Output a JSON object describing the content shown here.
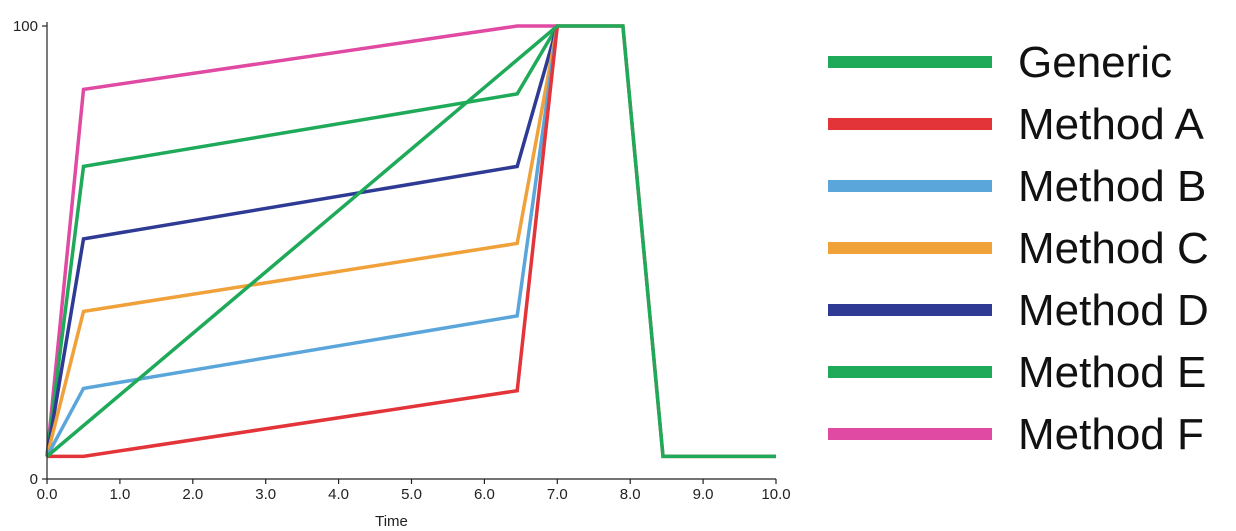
{
  "chart_data": {
    "type": "line",
    "xlabel": "Time",
    "ylabel": "",
    "xlim": [
      0,
      10
    ],
    "ylim": [
      0,
      100
    ],
    "x_ticks": [
      "0.0",
      "1.0",
      "2.0",
      "3.0",
      "4.0",
      "5.0",
      "6.0",
      "7.0",
      "8.0",
      "9.0",
      "10.0"
    ],
    "y_ticks": [
      "0",
      "100"
    ],
    "grid": false,
    "legend_position": "right",
    "series": [
      {
        "name": "Generic",
        "color": "#1faa5a",
        "x": [
          0,
          7.0,
          7.9,
          8.45,
          10.0
        ],
        "y": [
          5,
          100,
          100,
          5,
          5
        ]
      },
      {
        "name": "Method A",
        "color": "#e3343a",
        "x": [
          0,
          0.5,
          6.45,
          7.0,
          7.9,
          8.45,
          10.0
        ],
        "y": [
          5,
          5,
          19.5,
          100,
          100,
          5,
          5
        ]
      },
      {
        "name": "Method B",
        "color": "#5aa6db",
        "x": [
          0,
          0.5,
          6.45,
          7.0
        ],
        "y": [
          5,
          20,
          36,
          100
        ]
      },
      {
        "name": "Method C",
        "color": "#f0a13a",
        "x": [
          0,
          0.5,
          6.45,
          7.0
        ],
        "y": [
          5,
          37,
          52,
          100
        ]
      },
      {
        "name": "Method D",
        "color": "#2e3a93",
        "x": [
          0,
          0.5,
          6.45,
          7.0
        ],
        "y": [
          5,
          53,
          69,
          100
        ]
      },
      {
        "name": "Method E",
        "color": "#1faa5a",
        "x": [
          0,
          0.5,
          6.45,
          7.0
        ],
        "y": [
          5,
          69,
          85,
          100
        ]
      },
      {
        "name": "Method F",
        "color": "#e04aa3",
        "x": [
          0,
          0.5,
          6.45,
          7.0
        ],
        "y": [
          5,
          86,
          100,
          100
        ]
      }
    ]
  }
}
